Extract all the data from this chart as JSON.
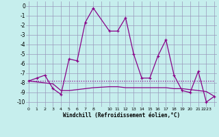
{
  "x_values": [
    0,
    1,
    2,
    3,
    4,
    5,
    6,
    7,
    8,
    10,
    11,
    12,
    13,
    14,
    15,
    16,
    17,
    18,
    19,
    20,
    21,
    22,
    23
  ],
  "line_main_y": [
    -7.8,
    -7.5,
    -7.2,
    -8.6,
    -9.2,
    -5.5,
    -5.7,
    -1.7,
    -0.2,
    -2.6,
    -2.6,
    -1.2,
    -5.0,
    -7.5,
    -7.5,
    -5.2,
    -3.5,
    -7.2,
    -8.8,
    -9.0,
    -6.8,
    -10.0,
    -9.4
  ],
  "line_flat_y": [
    -7.8,
    -7.8,
    -7.8,
    -7.8,
    -7.8,
    -7.8,
    -7.8,
    -7.8,
    -7.8,
    -7.8,
    -7.8,
    -7.8,
    -7.8,
    -7.8,
    -7.8,
    -7.8,
    -7.8,
    -7.8,
    -7.8,
    -7.8,
    -7.8,
    -7.8,
    -7.8
  ],
  "line_slope_y": [
    -7.8,
    -7.9,
    -8.0,
    -8.1,
    -8.8,
    -8.8,
    -8.7,
    -8.6,
    -8.5,
    -8.4,
    -8.4,
    -8.5,
    -8.5,
    -8.5,
    -8.5,
    -8.5,
    -8.5,
    -8.6,
    -8.6,
    -8.7,
    -8.8,
    -8.9,
    -9.4
  ],
  "bg_color": "#c6eeed",
  "grid_color": "#9999bb",
  "line_color": "#880088",
  "xlabel": "Windchill (Refroidissement éolien,°C)",
  "yticks": [
    0,
    -1,
    -2,
    -3,
    -4,
    -5,
    -6,
    -7,
    -8,
    -9,
    -10
  ],
  "xtick_labels": [
    "0",
    "1",
    "2",
    "3",
    "4",
    "5",
    "6",
    "7",
    "8",
    "",
    "10",
    "11",
    "12",
    "13",
    "14",
    "15",
    "16",
    "17",
    "18",
    "19",
    "20",
    "21",
    "2223"
  ],
  "xtick_positions": [
    0,
    1,
    2,
    3,
    4,
    5,
    6,
    7,
    8,
    9,
    10,
    11,
    12,
    13,
    14,
    15,
    16,
    17,
    18,
    19,
    20,
    21,
    22
  ],
  "ylim": [
    -10.5,
    0.5
  ],
  "xlim": [
    -0.3,
    23.3
  ]
}
